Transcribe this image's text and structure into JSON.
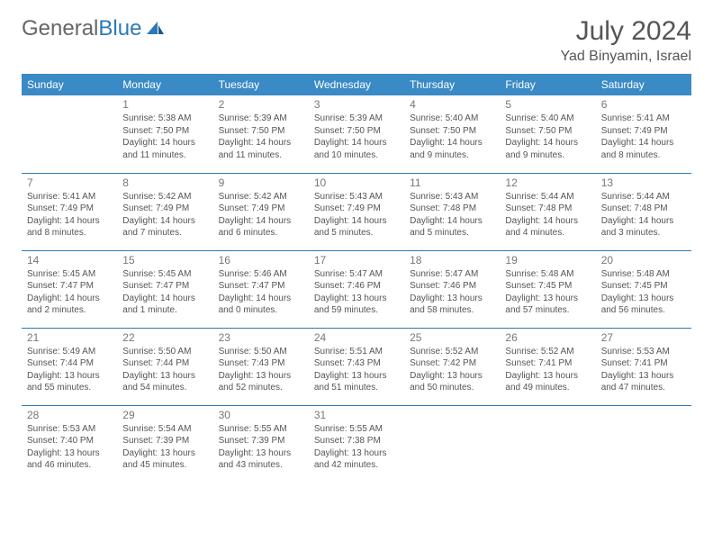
{
  "logo": {
    "part1": "General",
    "part2": "Blue"
  },
  "title": "July 2024",
  "location": "Yad Binyamin, Israel",
  "colors": {
    "header_bg": "#3a8ac5",
    "border": "#2a7ab8",
    "logo_blue": "#2a7ab8",
    "text": "#555555"
  },
  "day_names": [
    "Sunday",
    "Monday",
    "Tuesday",
    "Wednesday",
    "Thursday",
    "Friday",
    "Saturday"
  ],
  "weeks": [
    [
      null,
      {
        "n": "1",
        "sr": "Sunrise: 5:38 AM",
        "ss": "Sunset: 7:50 PM",
        "dl": "Daylight: 14 hours and 11 minutes."
      },
      {
        "n": "2",
        "sr": "Sunrise: 5:39 AM",
        "ss": "Sunset: 7:50 PM",
        "dl": "Daylight: 14 hours and 11 minutes."
      },
      {
        "n": "3",
        "sr": "Sunrise: 5:39 AM",
        "ss": "Sunset: 7:50 PM",
        "dl": "Daylight: 14 hours and 10 minutes."
      },
      {
        "n": "4",
        "sr": "Sunrise: 5:40 AM",
        "ss": "Sunset: 7:50 PM",
        "dl": "Daylight: 14 hours and 9 minutes."
      },
      {
        "n": "5",
        "sr": "Sunrise: 5:40 AM",
        "ss": "Sunset: 7:50 PM",
        "dl": "Daylight: 14 hours and 9 minutes."
      },
      {
        "n": "6",
        "sr": "Sunrise: 5:41 AM",
        "ss": "Sunset: 7:49 PM",
        "dl": "Daylight: 14 hours and 8 minutes."
      }
    ],
    [
      {
        "n": "7",
        "sr": "Sunrise: 5:41 AM",
        "ss": "Sunset: 7:49 PM",
        "dl": "Daylight: 14 hours and 8 minutes."
      },
      {
        "n": "8",
        "sr": "Sunrise: 5:42 AM",
        "ss": "Sunset: 7:49 PM",
        "dl": "Daylight: 14 hours and 7 minutes."
      },
      {
        "n": "9",
        "sr": "Sunrise: 5:42 AM",
        "ss": "Sunset: 7:49 PM",
        "dl": "Daylight: 14 hours and 6 minutes."
      },
      {
        "n": "10",
        "sr": "Sunrise: 5:43 AM",
        "ss": "Sunset: 7:49 PM",
        "dl": "Daylight: 14 hours and 5 minutes."
      },
      {
        "n": "11",
        "sr": "Sunrise: 5:43 AM",
        "ss": "Sunset: 7:48 PM",
        "dl": "Daylight: 14 hours and 5 minutes."
      },
      {
        "n": "12",
        "sr": "Sunrise: 5:44 AM",
        "ss": "Sunset: 7:48 PM",
        "dl": "Daylight: 14 hours and 4 minutes."
      },
      {
        "n": "13",
        "sr": "Sunrise: 5:44 AM",
        "ss": "Sunset: 7:48 PM",
        "dl": "Daylight: 14 hours and 3 minutes."
      }
    ],
    [
      {
        "n": "14",
        "sr": "Sunrise: 5:45 AM",
        "ss": "Sunset: 7:47 PM",
        "dl": "Daylight: 14 hours and 2 minutes."
      },
      {
        "n": "15",
        "sr": "Sunrise: 5:45 AM",
        "ss": "Sunset: 7:47 PM",
        "dl": "Daylight: 14 hours and 1 minute."
      },
      {
        "n": "16",
        "sr": "Sunrise: 5:46 AM",
        "ss": "Sunset: 7:47 PM",
        "dl": "Daylight: 14 hours and 0 minutes."
      },
      {
        "n": "17",
        "sr": "Sunrise: 5:47 AM",
        "ss": "Sunset: 7:46 PM",
        "dl": "Daylight: 13 hours and 59 minutes."
      },
      {
        "n": "18",
        "sr": "Sunrise: 5:47 AM",
        "ss": "Sunset: 7:46 PM",
        "dl": "Daylight: 13 hours and 58 minutes."
      },
      {
        "n": "19",
        "sr": "Sunrise: 5:48 AM",
        "ss": "Sunset: 7:45 PM",
        "dl": "Daylight: 13 hours and 57 minutes."
      },
      {
        "n": "20",
        "sr": "Sunrise: 5:48 AM",
        "ss": "Sunset: 7:45 PM",
        "dl": "Daylight: 13 hours and 56 minutes."
      }
    ],
    [
      {
        "n": "21",
        "sr": "Sunrise: 5:49 AM",
        "ss": "Sunset: 7:44 PM",
        "dl": "Daylight: 13 hours and 55 minutes."
      },
      {
        "n": "22",
        "sr": "Sunrise: 5:50 AM",
        "ss": "Sunset: 7:44 PM",
        "dl": "Daylight: 13 hours and 54 minutes."
      },
      {
        "n": "23",
        "sr": "Sunrise: 5:50 AM",
        "ss": "Sunset: 7:43 PM",
        "dl": "Daylight: 13 hours and 52 minutes."
      },
      {
        "n": "24",
        "sr": "Sunrise: 5:51 AM",
        "ss": "Sunset: 7:43 PM",
        "dl": "Daylight: 13 hours and 51 minutes."
      },
      {
        "n": "25",
        "sr": "Sunrise: 5:52 AM",
        "ss": "Sunset: 7:42 PM",
        "dl": "Daylight: 13 hours and 50 minutes."
      },
      {
        "n": "26",
        "sr": "Sunrise: 5:52 AM",
        "ss": "Sunset: 7:41 PM",
        "dl": "Daylight: 13 hours and 49 minutes."
      },
      {
        "n": "27",
        "sr": "Sunrise: 5:53 AM",
        "ss": "Sunset: 7:41 PM",
        "dl": "Daylight: 13 hours and 47 minutes."
      }
    ],
    [
      {
        "n": "28",
        "sr": "Sunrise: 5:53 AM",
        "ss": "Sunset: 7:40 PM",
        "dl": "Daylight: 13 hours and 46 minutes."
      },
      {
        "n": "29",
        "sr": "Sunrise: 5:54 AM",
        "ss": "Sunset: 7:39 PM",
        "dl": "Daylight: 13 hours and 45 minutes."
      },
      {
        "n": "30",
        "sr": "Sunrise: 5:55 AM",
        "ss": "Sunset: 7:39 PM",
        "dl": "Daylight: 13 hours and 43 minutes."
      },
      {
        "n": "31",
        "sr": "Sunrise: 5:55 AM",
        "ss": "Sunset: 7:38 PM",
        "dl": "Daylight: 13 hours and 42 minutes."
      },
      null,
      null,
      null
    ]
  ]
}
